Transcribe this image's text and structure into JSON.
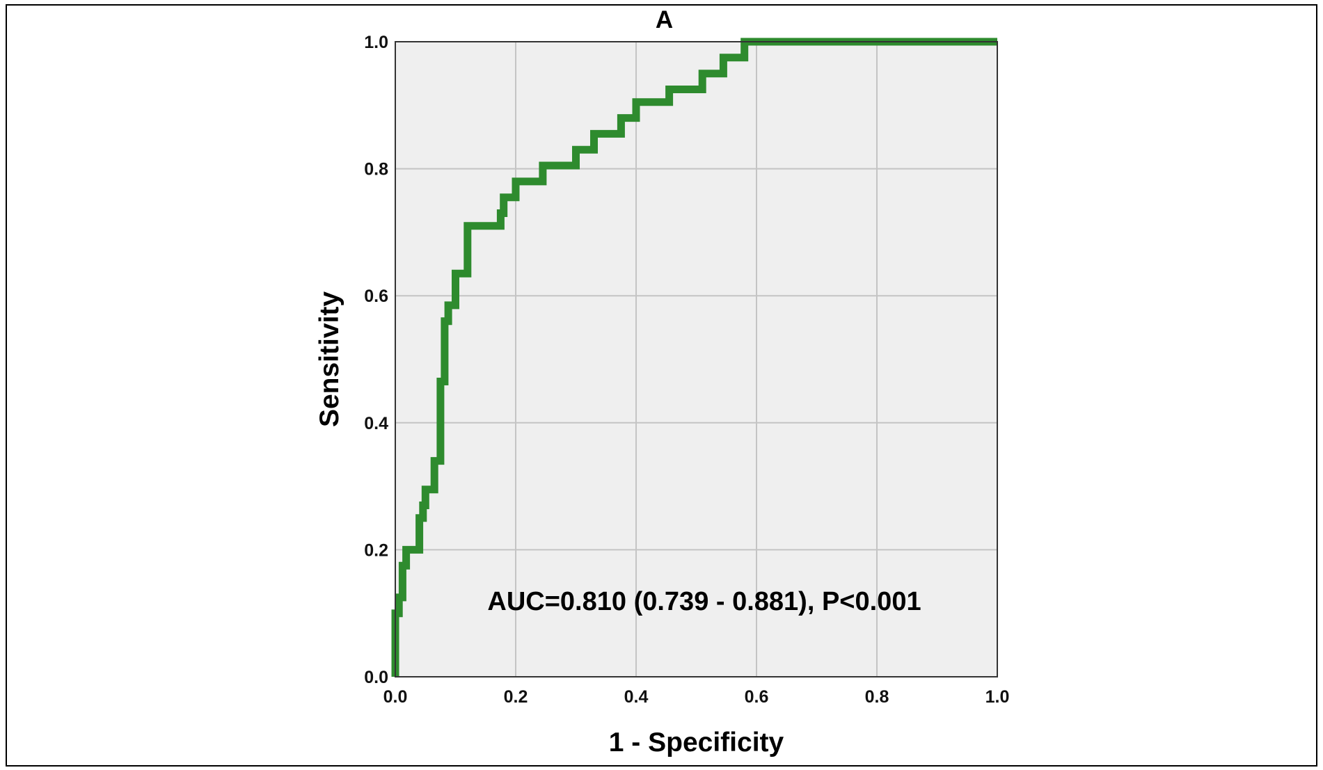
{
  "chart_data": {
    "type": "line",
    "title": "A",
    "xlabel": "1 - Specificity",
    "ylabel": "Sensitivity",
    "xlim": [
      0,
      1
    ],
    "ylim": [
      0,
      1
    ],
    "x_ticks": [
      "0.0",
      "0.2",
      "0.4",
      "0.6",
      "0.8",
      "1.0"
    ],
    "y_ticks": [
      "0.0",
      "0.2",
      "0.4",
      "0.6",
      "0.8",
      "1.0"
    ],
    "grid": true,
    "annotation": "AUC=0.810 (0.739 - 0.881), P<0.001",
    "colors": {
      "line": "#2e8b2e",
      "plot_background": "#efefef",
      "grid": "#c4c4c4"
    },
    "series": [
      {
        "x": [
          0.0,
          0.0,
          0.006,
          0.006,
          0.012,
          0.012,
          0.018,
          0.018,
          0.04,
          0.04,
          0.046,
          0.046,
          0.05,
          0.05,
          0.065,
          0.065,
          0.075,
          0.075,
          0.082,
          0.082,
          0.088,
          0.088,
          0.1,
          0.1,
          0.12,
          0.12,
          0.175,
          0.175,
          0.18,
          0.18,
          0.2,
          0.2,
          0.245,
          0.245,
          0.3,
          0.3,
          0.33,
          0.33,
          0.375,
          0.375,
          0.4,
          0.4,
          0.455,
          0.455,
          0.51,
          0.51,
          0.545,
          0.545,
          0.58,
          0.58,
          0.655,
          0.655,
          0.885,
          0.885,
          1.0
        ],
        "y": [
          0.0,
          0.1,
          0.1,
          0.125,
          0.125,
          0.175,
          0.175,
          0.2,
          0.2,
          0.25,
          0.25,
          0.27,
          0.27,
          0.295,
          0.295,
          0.34,
          0.34,
          0.465,
          0.465,
          0.56,
          0.56,
          0.585,
          0.585,
          0.635,
          0.635,
          0.71,
          0.71,
          0.73,
          0.73,
          0.755,
          0.755,
          0.78,
          0.78,
          0.805,
          0.805,
          0.83,
          0.83,
          0.855,
          0.855,
          0.88,
          0.88,
          0.905,
          0.905,
          0.925,
          0.925,
          0.95,
          0.95,
          0.975,
          0.975,
          1.0,
          1.0,
          1.0,
          1.0,
          1.0,
          1.0
        ]
      }
    ]
  }
}
